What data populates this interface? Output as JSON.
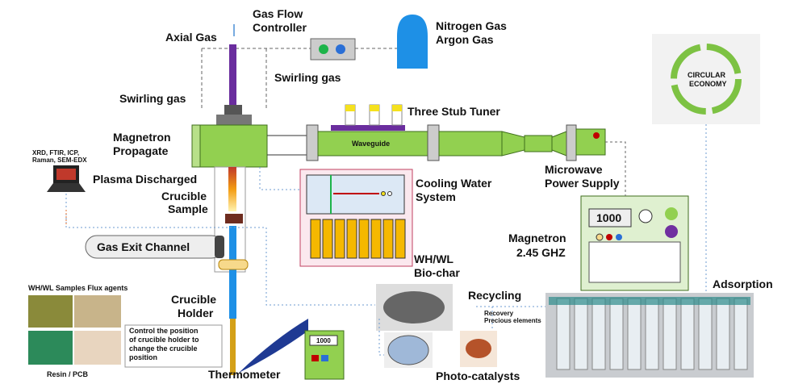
{
  "labels": {
    "axial_gas": "Axial Gas",
    "gas_flow_controller": [
      "Gas Flow",
      "Controller"
    ],
    "gas_bottle": [
      "Nitrogen Gas",
      "Argon Gas"
    ],
    "swirling_gas_right": "Swirling gas",
    "swirling_gas_left": "Swirling gas",
    "three_stub_tuner": "Three Stub Tuner",
    "magnetron_propagate": [
      "Magnetron",
      "Propagate"
    ],
    "waveguide": "Waveguide",
    "analysis": [
      "XRD, FTIR, ICP,",
      "Raman, SEM-EDX"
    ],
    "plasma_discharged": "Plasma Discharged",
    "crucible_sample": [
      "Crucible",
      "Sample"
    ],
    "cooling_water": [
      "Cooling Water",
      "System"
    ],
    "microwave_power": [
      "Microwave",
      "Power Supply"
    ],
    "power_display": "1000",
    "gas_exit": "Gas Exit Channel",
    "magnetron": [
      "Magnetron",
      "2.45 GHZ"
    ],
    "biochar": [
      "WH/WL",
      "Bio-char"
    ],
    "adsorption": "Adsorption",
    "recycling": "Recycling",
    "recovery": [
      "Recovery",
      "Precious elements"
    ],
    "samples": "WH/WL Samples Flux agents",
    "resin": "Resin / PCB",
    "crucible_holder": [
      "Crucible",
      "Holder"
    ],
    "control_note": [
      "Control the position",
      "of crucible holder to",
      "change the crucible",
      "position"
    ],
    "thermo_display": "1000",
    "thermometer": "Thermometer",
    "photocatalysts": "Photo-catalysts",
    "circular_economy": [
      "CIRCULAR",
      "ECONOMY"
    ]
  }
}
